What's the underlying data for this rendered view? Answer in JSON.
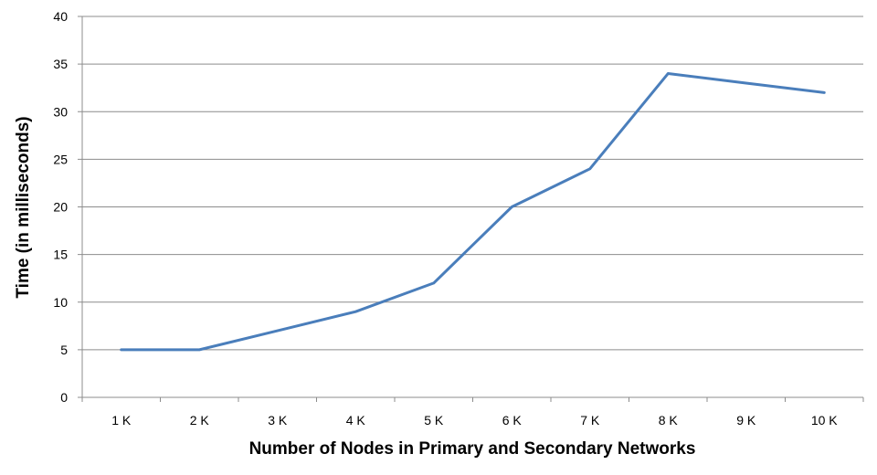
{
  "chart_data": {
    "type": "line",
    "title": "",
    "xlabel": "Number of Nodes in Primary and Secondary Networks",
    "ylabel": "Time (in milliseconds)",
    "categories": [
      "1 K",
      "2 K",
      "3 K",
      "4 K",
      "5 K",
      "6 K",
      "7 K",
      "8 K",
      "9 K",
      "10 K"
    ],
    "series": [
      {
        "values": [
          5,
          5,
          7,
          9,
          12,
          20,
          24,
          34,
          33,
          32
        ],
        "color": "#4a7ebb"
      }
    ],
    "ylim": [
      0,
      40
    ],
    "yticks": [
      0,
      5,
      10,
      15,
      20,
      25,
      30,
      35,
      40
    ],
    "grid": true,
    "legend": "none",
    "colors": {
      "grid": "#8c8c8c",
      "axis": "#8c8c8c",
      "line": "#4a7ebb"
    }
  }
}
